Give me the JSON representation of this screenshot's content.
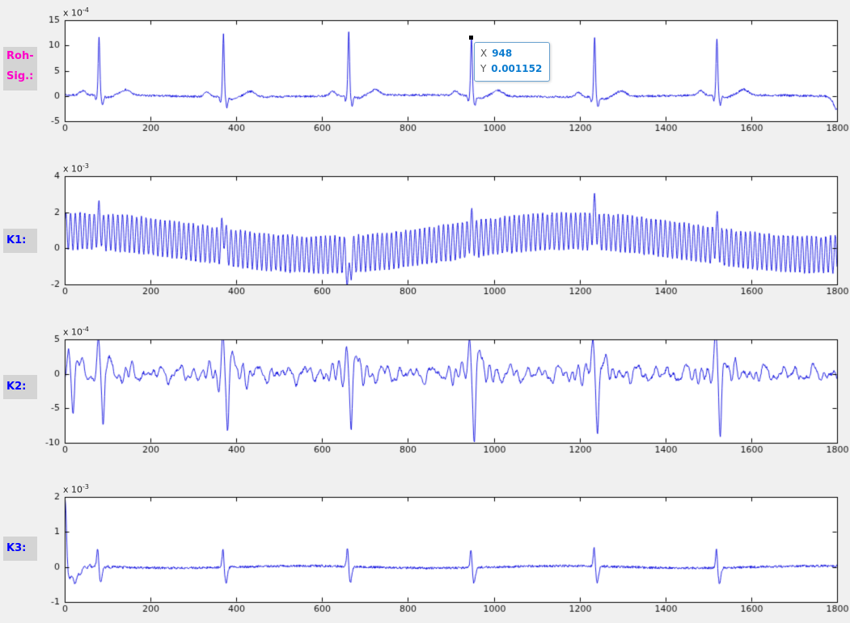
{
  "figure": {
    "background": "#f0f0f0",
    "plot_background": "#ffffff",
    "line_color": "#0000dd",
    "axes_color": "#000000",
    "label_box_background": "#d4d4d4"
  },
  "row_labels": {
    "rohsig": {
      "line1": "Roh-",
      "line2": "Sig.:",
      "color": "#ff00c8"
    },
    "k1": {
      "label": "K1:",
      "color": "#0000ff"
    },
    "k2": {
      "label": "K2:",
      "color": "#0000ff"
    },
    "k3": {
      "label": "K3:",
      "color": "#0000ff"
    }
  },
  "datatip": {
    "x_label": "X",
    "x_value": "948",
    "y_label": "Y",
    "y_value": "0.001152",
    "accent_color": "#0b7cd0"
  },
  "chart_data": [
    {
      "type": "line",
      "name": "roh-signal-ecg",
      "exponent": {
        "base": "x 10",
        "power": "-4"
      },
      "unit_scale": 0.0001,
      "xlim": [
        0,
        1800
      ],
      "ylim": [
        -5,
        15
      ],
      "xticks": [
        0,
        200,
        400,
        600,
        800,
        1000,
        1200,
        1400,
        1600,
        1800
      ],
      "yticks": [
        -5,
        0,
        5,
        10,
        15
      ],
      "grid": false,
      "signal": {
        "kind": "ecg",
        "seed": 7,
        "step": 1,
        "noise": 0.22,
        "beats": [
          80,
          370,
          662,
          948,
          1235,
          1520
        ],
        "r_amps": [
          11.4,
          12.3,
          12.5,
          11.52,
          11.9,
          11.3
        ],
        "p_amp": 0.9,
        "t_amp": 1.1,
        "s_amp": -1.9,
        "end_dip": {
          "x": 1800,
          "amp": -2.6,
          "width": 12
        }
      }
    },
    {
      "type": "line",
      "name": "k1-component",
      "exponent": {
        "base": "x 10",
        "power": "-3"
      },
      "unit_scale": 0.001,
      "xlim": [
        0,
        1800
      ],
      "ylim": [
        -2,
        4
      ],
      "xticks": [
        0,
        200,
        400,
        600,
        800,
        1000,
        1200,
        1400,
        1600,
        1800
      ],
      "yticks": [
        -2,
        0,
        2,
        4
      ],
      "grid": false,
      "signal": {
        "kind": "am_osc",
        "seed": 12,
        "step": 0.4,
        "noise": 0.07,
        "period": 11,
        "amp": 1.0,
        "drift": {
          "offset": 0.3,
          "amp": 0.65,
          "period": 1160,
          "phase": 20
        },
        "beats": [
          80,
          370,
          662,
          948,
          1235,
          1520
        ],
        "beat_amps": [
          0.7,
          1.0,
          -1.6,
          0.7,
          1.1,
          0.9
        ]
      }
    },
    {
      "type": "line",
      "name": "k2-component",
      "exponent": {
        "base": "x 10",
        "power": "-4"
      },
      "unit_scale": 0.0001,
      "xlim": [
        0,
        1800
      ],
      "ylim": [
        -10,
        5
      ],
      "xticks": [
        0,
        200,
        400,
        600,
        800,
        1000,
        1200,
        1400,
        1600,
        1800
      ],
      "yticks": [
        -10,
        -5,
        0,
        5
      ],
      "grid": false,
      "signal": {
        "kind": "wavelet",
        "seed": 3,
        "step": 1,
        "noise": 0.22,
        "beats": [
          20,
          90,
          380,
          668,
          955,
          1242,
          1528
        ],
        "up_amps": [
          3.2,
          4.3,
          4.6,
          4.2,
          4.5,
          4.0,
          4.2
        ],
        "down_amps": [
          5.0,
          8.7,
          8.6,
          8.4,
          8.6,
          7.9,
          8.5
        ],
        "post_factor": 0.85,
        "ring_amp": 1.3,
        "noise_bands": [
          [
            37,
            0.55
          ],
          [
            23,
            0.4
          ],
          [
            59,
            0.5
          ],
          [
            13,
            0.28
          ]
        ],
        "phases": [
          0.7,
          2.1,
          4.0,
          1.3
        ]
      }
    },
    {
      "type": "line",
      "name": "k3-component",
      "exponent": {
        "base": "x 10",
        "power": "-3"
      },
      "unit_scale": 0.001,
      "xlim": [
        0,
        1800
      ],
      "ylim": [
        -1,
        2
      ],
      "xticks": [
        0,
        200,
        400,
        600,
        800,
        1000,
        1200,
        1400,
        1600,
        1800
      ],
      "yticks": [
        -1,
        0,
        1,
        2
      ],
      "grid": false,
      "signal": {
        "kind": "spiky",
        "seed": 9,
        "step": 1,
        "noise": 0.035,
        "initial": {
          "amp": 1.9,
          "center": 1,
          "width": 4,
          "under_amp": -0.42,
          "under_center": 22,
          "under_width": 16
        },
        "beats": [
          80,
          372,
          662,
          950,
          1237,
          1522
        ],
        "up_amp": 0.55,
        "down_amp": 0.45
      }
    }
  ]
}
